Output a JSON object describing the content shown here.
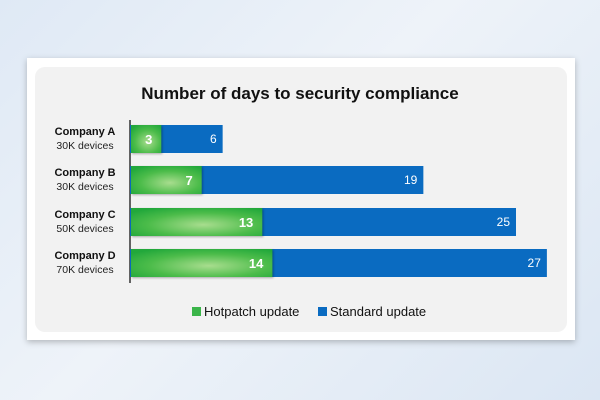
{
  "chart_data": {
    "type": "bar",
    "orientation": "horizontal",
    "stacked": false,
    "title": "Number of days to security compliance",
    "categories": [
      "Company A",
      "Company B",
      "Company C",
      "Company D"
    ],
    "subtitles": [
      "30K devices",
      "30K devices",
      "50K devices",
      "70K devices"
    ],
    "series": [
      {
        "name": "Hotpatch update",
        "values": [
          3,
          7,
          13,
          14
        ],
        "color": "#3bb54a"
      },
      {
        "name": "Standard update",
        "values": [
          6,
          19,
          25,
          27
        ],
        "color": "#0a6bc1"
      }
    ],
    "xlabel": "",
    "ylabel": "",
    "grid": false,
    "legend": "bottom"
  }
}
